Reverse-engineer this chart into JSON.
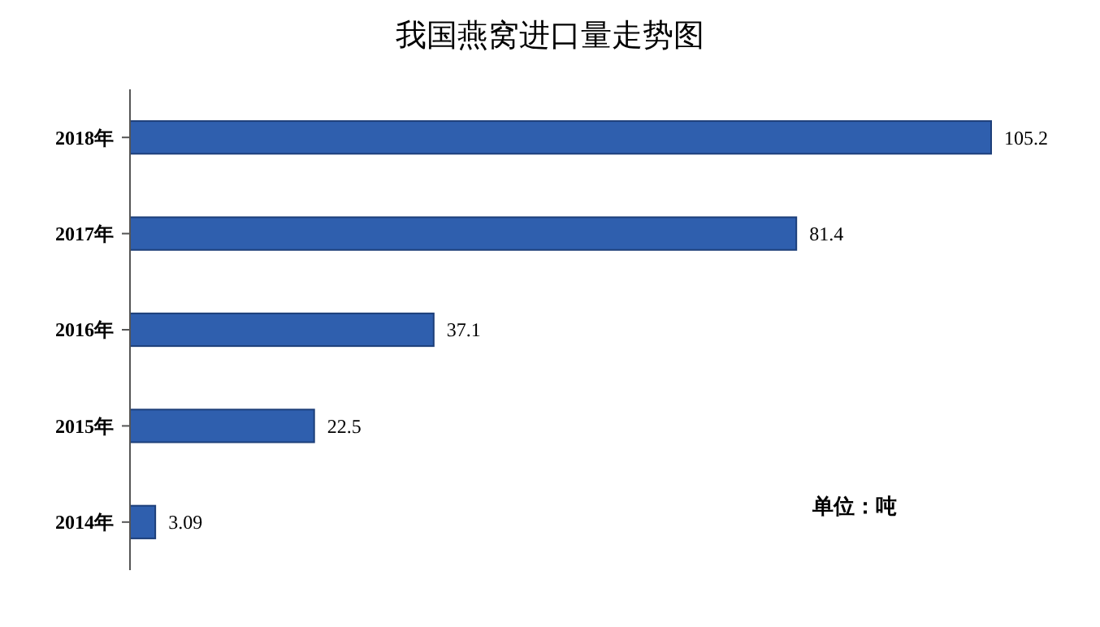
{
  "chart_data": {
    "type": "bar",
    "orientation": "horizontal",
    "title": "我国燕窝进口量走势图",
    "categories": [
      "2018年",
      "2017年",
      "2016年",
      "2015年",
      "2014年"
    ],
    "values": [
      105.2,
      81.4,
      37.1,
      22.5,
      3.09
    ],
    "value_labels": [
      "105.2",
      "81.4",
      "37.1",
      "22.5",
      "3.09"
    ],
    "color": "#2f5fae",
    "annotations": [
      "单位：吨"
    ]
  }
}
